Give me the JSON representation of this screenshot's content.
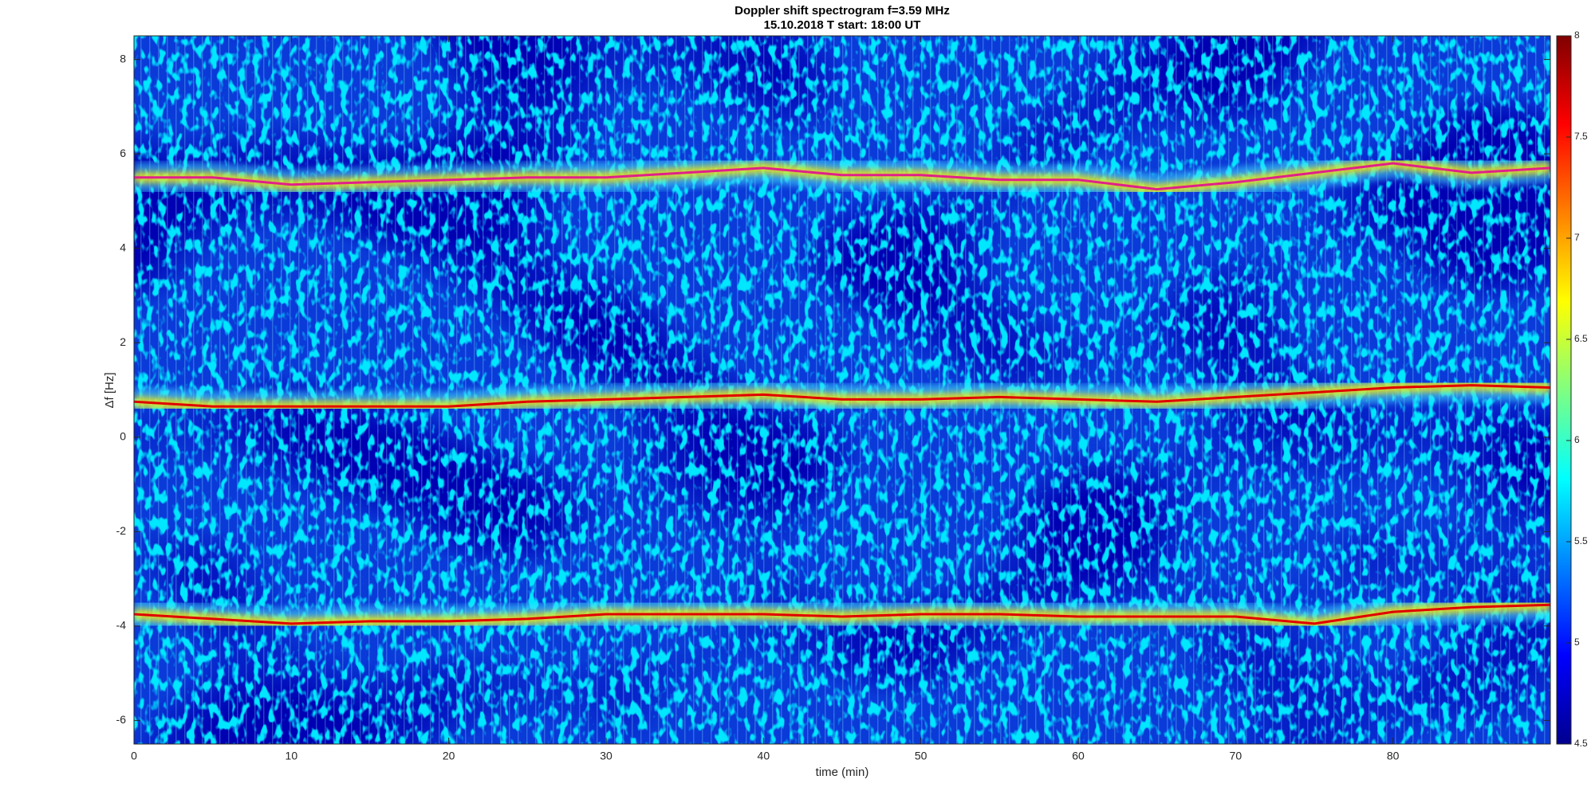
{
  "chart_data": {
    "type": "spectrogram",
    "title": "Doppler shift spectrogram f=3.59 MHz",
    "subtitle": "15.10.2018   T start: 18:00 UT",
    "xlabel": "time (min)",
    "ylabel": "Δf [Hz]",
    "xlim": [
      0,
      90
    ],
    "xticks": [
      0,
      10,
      20,
      30,
      40,
      50,
      60,
      70,
      80
    ],
    "ylim": [
      -6.5,
      8.5
    ],
    "yticks": [
      -6,
      -4,
      -2,
      0,
      2,
      4,
      6,
      8
    ],
    "clim": [
      4.5,
      8
    ],
    "cticks": [
      4.5,
      5,
      5.5,
      6,
      6.5,
      7,
      7.5,
      8
    ],
    "colormap": [
      "#00008f",
      "#0000ff",
      "#0080ff",
      "#00ffff",
      "#80ff80",
      "#ffff00",
      "#ff8000",
      "#ff0000",
      "#800000"
    ],
    "x": [
      0,
      5,
      10,
      15,
      20,
      25,
      30,
      35,
      40,
      45,
      50,
      55,
      60,
      65,
      70,
      75,
      80,
      85,
      90
    ],
    "series": [
      {
        "color": "#e0208a",
        "values": [
          5.5,
          5.5,
          5.35,
          5.4,
          5.45,
          5.5,
          5.5,
          5.6,
          5.7,
          5.55,
          5.55,
          5.45,
          5.45,
          5.25,
          5.4,
          5.6,
          5.8,
          5.6,
          5.7
        ]
      },
      {
        "color": "#e00000",
        "values": [
          0.75,
          0.65,
          0.65,
          0.65,
          0.65,
          0.75,
          0.8,
          0.85,
          0.9,
          0.8,
          0.8,
          0.85,
          0.8,
          0.75,
          0.85,
          0.95,
          1.05,
          1.1,
          1.05
        ]
      },
      {
        "color": "#e00000",
        "values": [
          -3.75,
          -3.85,
          -3.95,
          -3.9,
          -3.9,
          -3.85,
          -3.75,
          -3.75,
          -3.75,
          -3.8,
          -3.75,
          -3.75,
          -3.8,
          -3.8,
          -3.8,
          -3.95,
          -3.7,
          -3.6,
          -3.55
        ]
      }
    ]
  }
}
